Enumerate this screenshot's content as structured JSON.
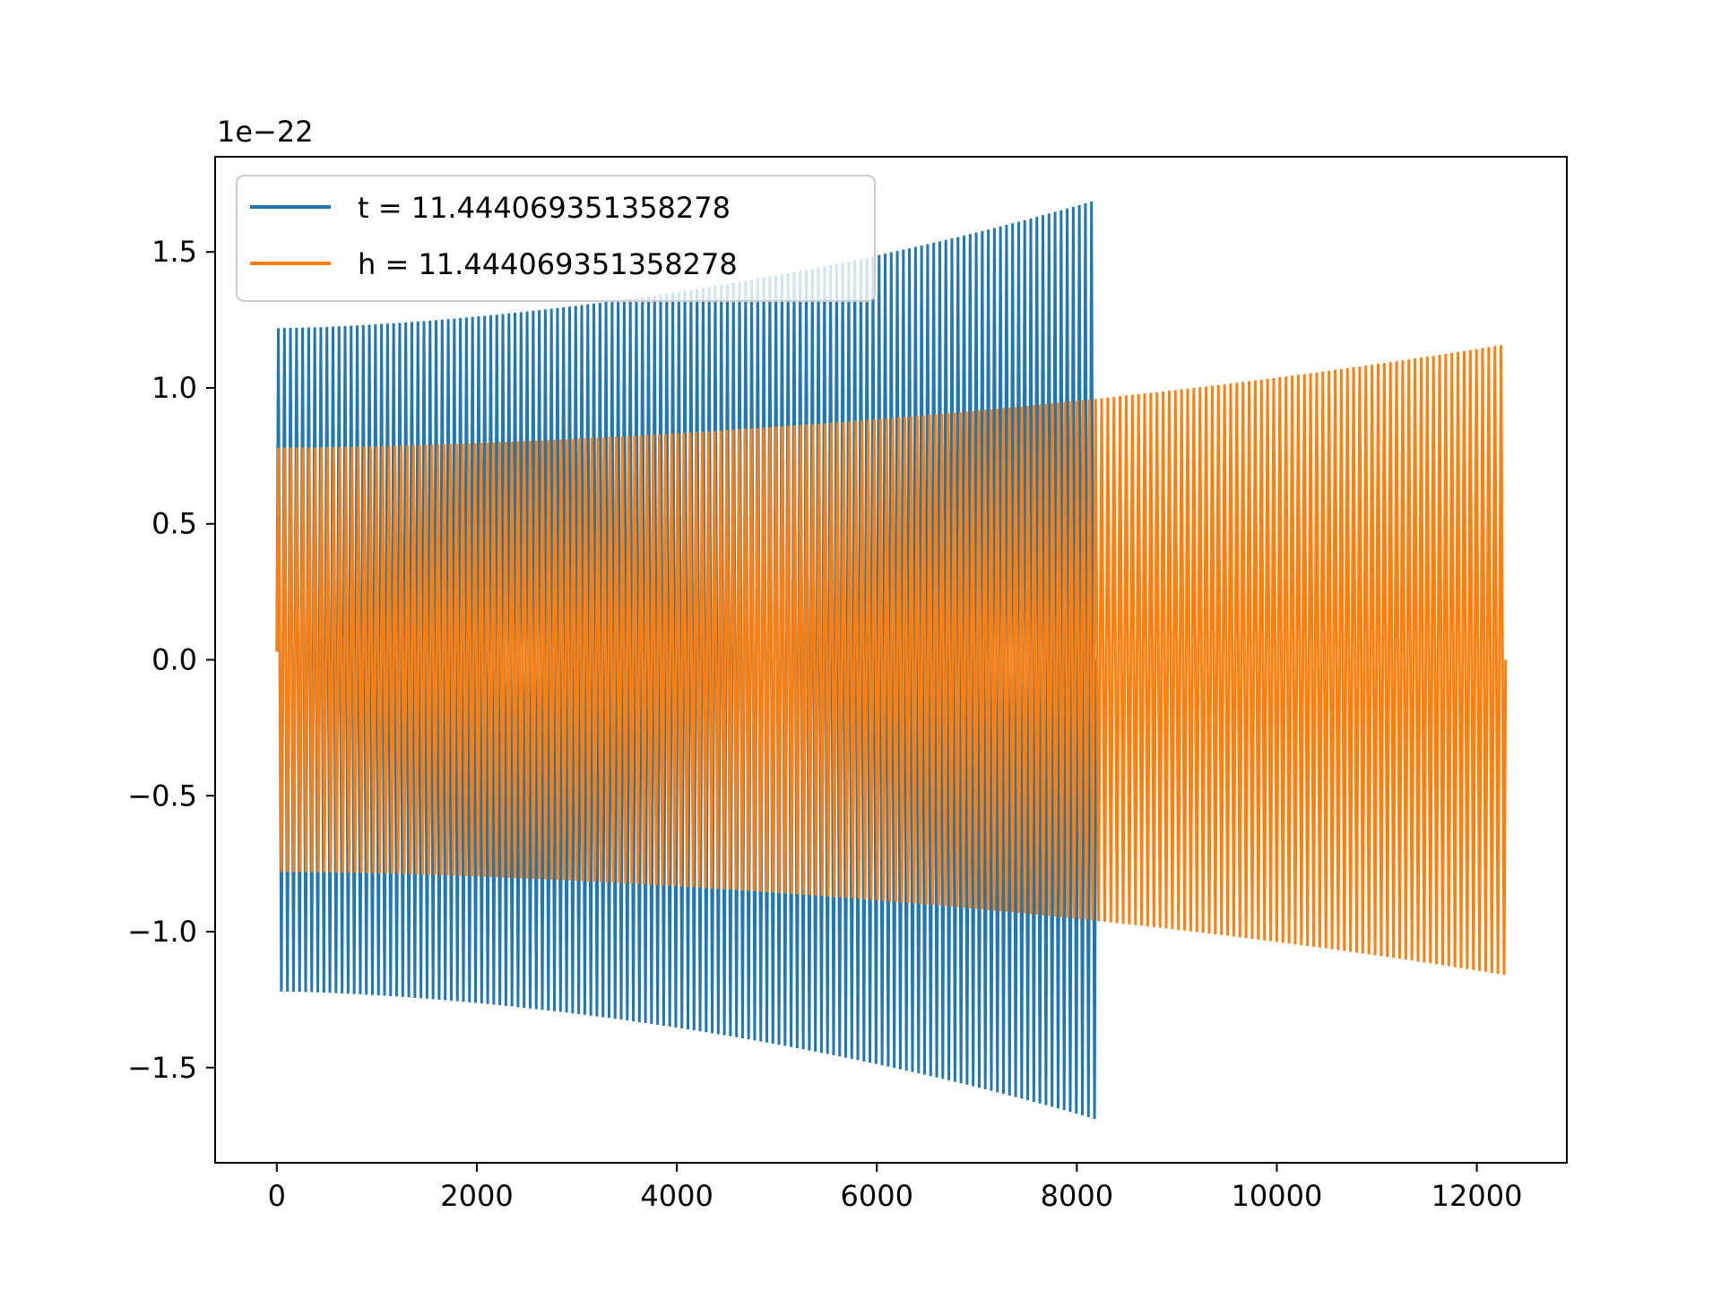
{
  "chart_data": {
    "type": "line",
    "title": "",
    "xlabel": "",
    "ylabel": "",
    "y_offset_label": "1e−22",
    "xlim": [
      -617,
      12900
    ],
    "ylim": [
      -1.85,
      1.85
    ],
    "x_ticks": [
      {
        "value": 0,
        "label": "0"
      },
      {
        "value": 2000,
        "label": "2000"
      },
      {
        "value": 4000,
        "label": "4000"
      },
      {
        "value": 6000,
        "label": "6000"
      },
      {
        "value": 8000,
        "label": "8000"
      },
      {
        "value": 10000,
        "label": "10000"
      },
      {
        "value": 12000,
        "label": "12000"
      }
    ],
    "y_ticks": [
      {
        "value": 1.5,
        "label": "1.5"
      },
      {
        "value": 1.0,
        "label": "1.0"
      },
      {
        "value": 0.5,
        "label": "0.5"
      },
      {
        "value": 0.0,
        "label": "0.0"
      },
      {
        "value": -0.5,
        "label": "−0.5"
      },
      {
        "value": -1.0,
        "label": "−1.0"
      },
      {
        "value": -1.5,
        "label": "−1.5"
      }
    ],
    "grid": false,
    "legend_position": "upper-left",
    "series": [
      {
        "name": "t = 11.444069351358278",
        "color": "#1f77b4",
        "x_start": 0,
        "x_end": 8192,
        "cycles": 135,
        "amplitude_start": 1.22,
        "amplitude_end": 1.69
      },
      {
        "name": "h = 11.444069351358278",
        "color": "#ff7f0e",
        "x_start": 0,
        "x_end": 12288,
        "cycles": 200,
        "amplitude_start": 0.78,
        "amplitude_end": 1.16
      }
    ]
  }
}
